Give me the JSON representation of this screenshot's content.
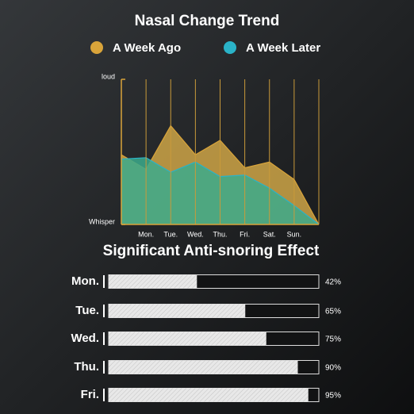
{
  "chart_data": [
    {
      "type": "area",
      "title": "Nasal Change Trend",
      "categories": [
        null,
        "Mon.",
        "Tue.",
        "Wed.",
        "Thu.",
        "Fri.",
        "Sat.",
        "Sun.",
        null
      ],
      "series": [
        {
          "name": "A Week Ago",
          "color": "#d9a43a",
          "values": [
            4.8,
            3.8,
            6.8,
            4.8,
            5.8,
            3.9,
            4.3,
            3.1,
            0
          ]
        },
        {
          "name": "A Week Later",
          "color": "#2ab3c8",
          "values": [
            4.5,
            4.6,
            3.6,
            4.3,
            3.3,
            3.4,
            2.5,
            1.3,
            0
          ]
        }
      ],
      "ylim": [
        0,
        10
      ],
      "yticks": [
        {
          "value": 0,
          "label": "Whisper"
        },
        {
          "value": 10,
          "label": "loud"
        }
      ]
    },
    {
      "type": "hbar",
      "title": "Significant Anti-snoring Effect",
      "categories": [
        "Mon.",
        "Tue.",
        "Wed.",
        "Thu.",
        "Fri."
      ],
      "values": [
        42,
        65,
        75,
        90,
        95
      ],
      "value_labels": [
        "42%",
        "65%",
        "75%",
        "90%",
        "95%"
      ],
      "xlim": [
        0,
        100
      ],
      "color": "#e4e4e4"
    }
  ]
}
